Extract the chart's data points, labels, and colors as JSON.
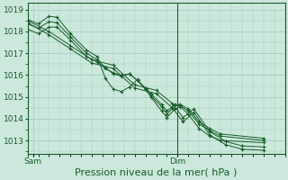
{
  "bg_color": "#cce8dc",
  "grid_color": "#99ccbb",
  "line_color": "#1a5c2a",
  "marker_color": "#1a5c2a",
  "xlabel": "Pression niveau de la mer( hPa )",
  "xlabel_fontsize": 8,
  "tick_fontsize": 6.5,
  "ylim": [
    1012.4,
    1019.3
  ],
  "yticks": [
    1013,
    1014,
    1015,
    1016,
    1017,
    1018,
    1019
  ],
  "xlim": [
    0,
    48
  ],
  "sam_x": 1,
  "dim_x": 28,
  "series": [
    [
      0,
      1018.55,
      2,
      1018.35,
      4,
      1018.7,
      5.5,
      1018.65,
      8,
      1017.9,
      11,
      1017.15,
      13,
      1016.85,
      14.5,
      1015.85,
      16,
      1015.35,
      17.5,
      1015.25,
      19,
      1015.45,
      20.5,
      1015.8,
      22,
      1015.35,
      23,
      1015.0,
      25,
      1014.35,
      26,
      1014.05,
      27.5,
      1014.45,
      28.5,
      1014.55,
      30,
      1014.2,
      32,
      1013.55,
      34,
      1013.2,
      36,
      1013.0,
      44,
      1012.9
    ],
    [
      0,
      1018.35,
      2,
      1018.15,
      4,
      1018.45,
      5.5,
      1018.4,
      8,
      1017.75,
      11,
      1017.0,
      13,
      1016.7,
      14.5,
      1016.35,
      16,
      1016.05,
      17.5,
      1015.95,
      19,
      1016.05,
      20.5,
      1015.75,
      22,
      1015.35,
      23,
      1015.05,
      25,
      1014.55,
      26,
      1014.2,
      27.5,
      1014.6,
      28.5,
      1014.6,
      30,
      1014.35,
      32,
      1013.75,
      34,
      1013.45,
      36,
      1013.2,
      44,
      1013.0
    ],
    [
      0,
      1018.1,
      2,
      1017.9,
      4,
      1018.2,
      5.5,
      1018.2,
      8,
      1017.6,
      11,
      1016.85,
      13,
      1016.6,
      14.5,
      1016.3,
      16,
      1016.1,
      17.5,
      1016.0,
      19,
      1016.05,
      20.5,
      1015.75,
      22,
      1015.4,
      23,
      1015.15,
      25,
      1014.65,
      26,
      1014.35,
      27.5,
      1014.65,
      28.5,
      1014.65,
      30,
      1014.45,
      32,
      1013.85,
      34,
      1013.55,
      36,
      1013.3,
      44,
      1013.1
    ],
    [
      0,
      1018.5,
      4,
      1018.0,
      8,
      1017.35,
      12,
      1016.7,
      16,
      1016.45,
      20,
      1015.55,
      24,
      1015.3,
      27,
      1014.7,
      29,
      1014.05,
      31,
      1014.45,
      34,
      1013.4,
      37,
      1012.95,
      40,
      1012.75,
      44,
      1012.7
    ],
    [
      0,
      1018.4,
      4,
      1017.85,
      8,
      1017.2,
      12,
      1016.55,
      16,
      1016.3,
      20,
      1015.4,
      24,
      1015.15,
      27,
      1014.5,
      29,
      1013.85,
      31,
      1014.3,
      34,
      1013.25,
      37,
      1012.8,
      40,
      1012.6,
      44,
      1012.55
    ]
  ],
  "vline_x": 28,
  "vline_color": "#2a5a3a"
}
